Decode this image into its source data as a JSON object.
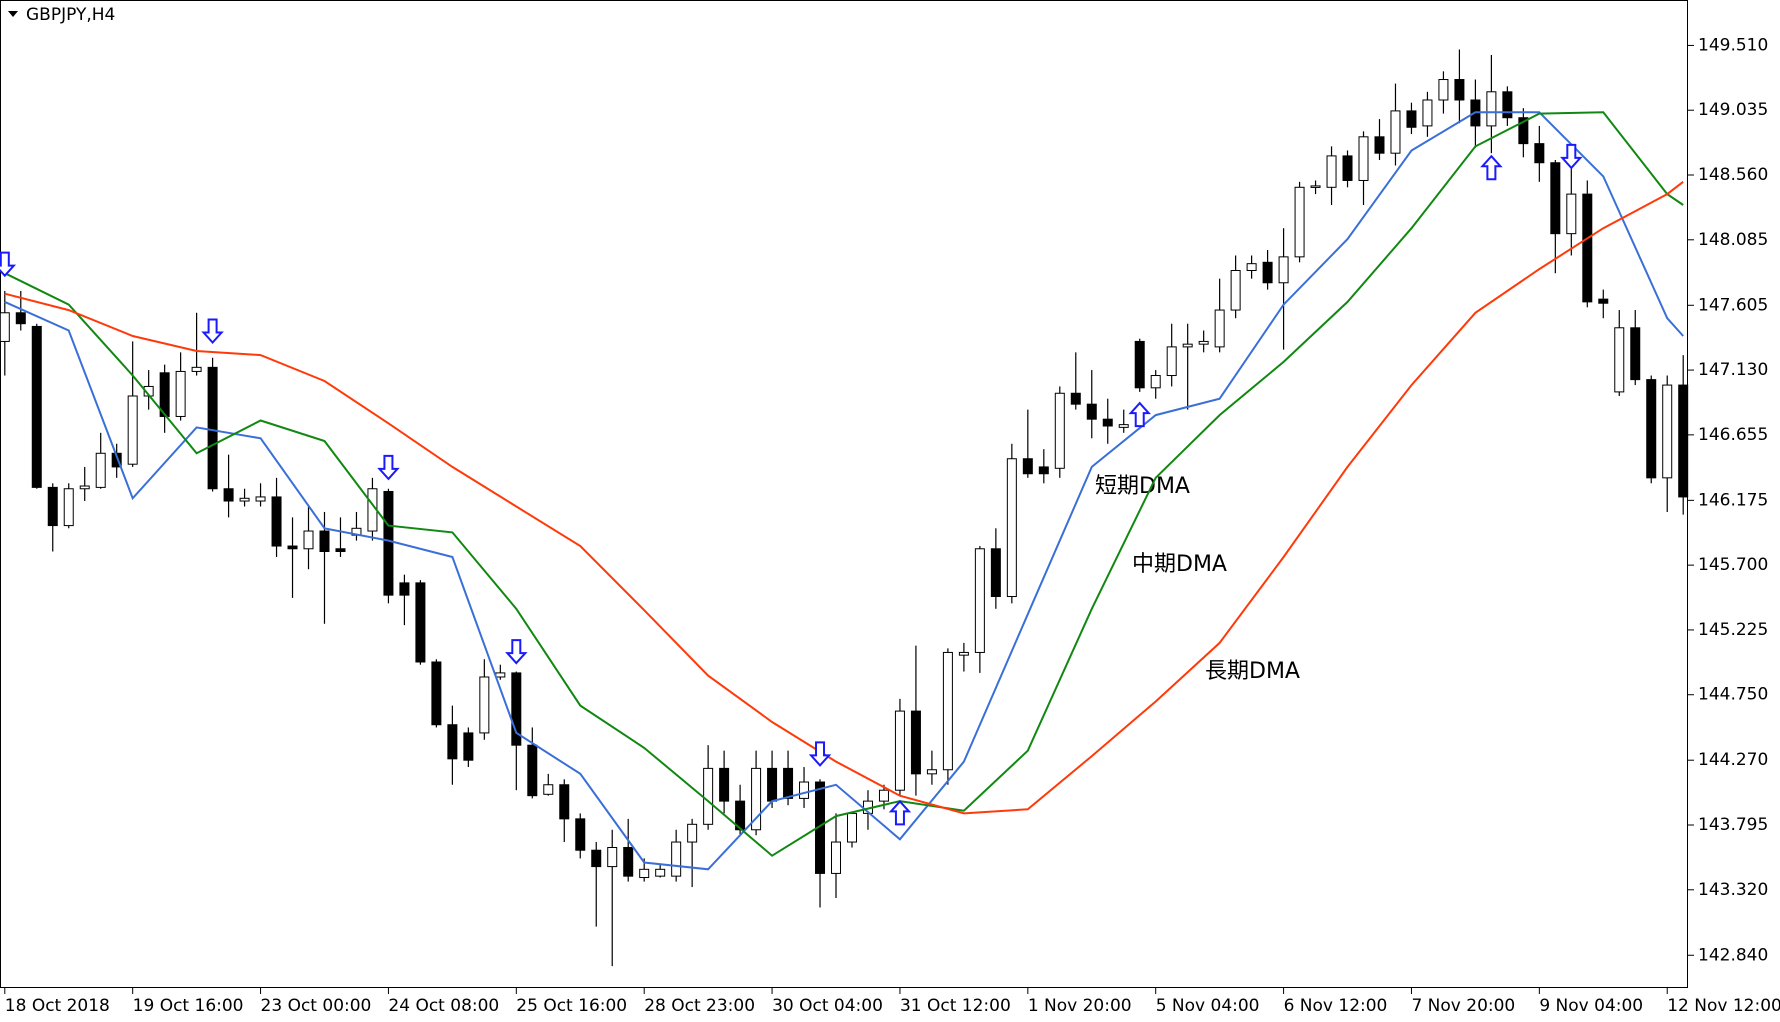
{
  "chart_data": {
    "type": "candlestick",
    "title": "GBPJPY,H4",
    "categories": [
      "18 Oct 2018",
      null,
      null,
      null,
      null,
      null,
      null,
      null,
      "19 Oct 16:00",
      null,
      null,
      null,
      null,
      null,
      null,
      null,
      "23 Oct 00:00",
      null,
      null,
      null,
      null,
      null,
      null,
      null,
      "24 Oct 08:00",
      null,
      null,
      null,
      null,
      null,
      null,
      null,
      "25 Oct 16:00",
      null,
      null,
      null,
      null,
      null,
      null,
      null,
      "28 Oct 23:00",
      null,
      null,
      null,
      null,
      null,
      null,
      null,
      "30 Oct 04:00",
      null,
      null,
      null,
      null,
      null,
      null,
      null,
      "31 Oct 12:00",
      null,
      null,
      null,
      null,
      null,
      null,
      null,
      "1 Nov 20:00",
      null,
      null,
      null,
      null,
      null,
      null,
      null,
      "5 Nov 04:00",
      null,
      null,
      null,
      null,
      null,
      null,
      null,
      "6 Nov 12:00",
      null,
      null,
      null,
      null,
      null,
      null,
      null,
      "7 Nov 20:00",
      null,
      null,
      null,
      null,
      null,
      null,
      null,
      "9 Nov 04:00",
      null,
      null,
      null,
      null,
      null,
      null,
      null,
      "12 Nov 12:00",
      null
    ],
    "open": [
      147.34,
      147.55,
      147.45,
      146.27,
      145.99,
      146.26,
      146.27,
      146.52,
      146.44,
      146.94,
      147.11,
      146.79,
      147.12,
      147.15,
      146.26,
      146.17,
      146.17,
      146.2,
      145.84,
      145.82,
      145.95,
      145.82,
      145.92,
      145.95,
      146.24,
      145.57,
      145.57,
      144.99,
      144.53,
      144.47,
      144.47,
      144.88,
      144.91,
      144.38,
      144.02,
      144.09,
      143.84,
      143.61,
      143.49,
      143.63,
      143.41,
      143.42,
      143.42,
      143.67,
      143.8,
      144.21,
      143.97,
      143.76,
      144.21,
      144.21,
      143.99,
      144.11,
      143.44,
      143.67,
      143.88,
      143.97,
      144.05,
      144.63,
      144.17,
      144.2,
      145.04,
      145.06,
      145.82,
      145.47,
      146.48,
      146.42,
      146.41,
      146.96,
      146.88,
      146.77,
      146.71,
      147.34,
      147.0,
      147.09,
      147.3,
      147.32,
      147.3,
      147.57,
      147.86,
      147.92,
      147.77,
      147.96,
      148.47,
      148.47,
      148.7,
      148.52,
      148.84,
      148.72,
      149.03,
      148.92,
      149.11,
      149.26,
      149.11,
      148.92,
      149.17,
      148.98,
      148.79,
      148.65,
      148.13,
      148.42,
      147.65,
      146.97,
      147.44,
      147.06,
      146.34,
      147.02
    ],
    "high": [
      147.71,
      147.71,
      147.47,
      146.3,
      146.3,
      146.42,
      146.67,
      146.59,
      147.34,
      147.13,
      147.17,
      147.26,
      147.55,
      147.22,
      146.51,
      146.26,
      146.3,
      146.34,
      146.05,
      146.13,
      146.09,
      146.05,
      146.09,
      146.34,
      146.26,
      145.63,
      145.59,
      145.01,
      144.67,
      144.51,
      145.01,
      144.97,
      144.92,
      144.51,
      144.17,
      144.13,
      143.88,
      143.67,
      143.76,
      143.84,
      143.55,
      143.51,
      143.76,
      143.84,
      144.38,
      144.34,
      144.09,
      144.34,
      144.34,
      144.34,
      144.22,
      144.13,
      143.88,
      143.81,
      144.05,
      144.09,
      144.72,
      145.11,
      144.34,
      145.09,
      145.13,
      145.84,
      145.97,
      146.59,
      146.84,
      146.55,
      147.01,
      147.26,
      147.13,
      146.92,
      146.84,
      147.36,
      147.13,
      147.47,
      147.47,
      147.42,
      147.8,
      147.97,
      147.97,
      148.01,
      148.17,
      148.51,
      148.52,
      148.77,
      148.74,
      148.88,
      148.97,
      149.23,
      149.09,
      149.17,
      149.32,
      149.48,
      149.26,
      149.44,
      149.21,
      149.05,
      148.92,
      148.67,
      148.76,
      148.52,
      147.72,
      147.57,
      147.57,
      147.09,
      147.09,
      147.24
    ],
    "low": [
      147.09,
      147.42,
      146.26,
      145.8,
      145.97,
      146.17,
      146.26,
      146.34,
      146.42,
      146.84,
      146.67,
      146.76,
      147.09,
      146.24,
      146.05,
      146.13,
      146.13,
      145.76,
      145.46,
      145.67,
      145.27,
      145.76,
      145.88,
      145.88,
      145.42,
      145.26,
      144.97,
      144.51,
      144.09,
      144.22,
      144.42,
      144.86,
      144.05,
      143.99,
      144.01,
      143.67,
      143.55,
      143.05,
      142.76,
      143.38,
      143.38,
      143.41,
      143.38,
      143.34,
      143.76,
      143.88,
      143.72,
      143.72,
      143.92,
      143.94,
      143.92,
      143.19,
      143.26,
      143.63,
      143.76,
      143.91,
      144.01,
      144.01,
      144.09,
      144.09,
      144.92,
      144.91,
      145.38,
      145.42,
      146.34,
      146.3,
      146.34,
      146.84,
      146.63,
      146.59,
      146.67,
      146.97,
      146.92,
      147.01,
      146.84,
      147.26,
      147.26,
      147.51,
      147.8,
      147.72,
      147.28,
      147.92,
      148.42,
      148.34,
      148.47,
      148.34,
      148.67,
      148.63,
      148.86,
      148.84,
      149.01,
      148.94,
      148.76,
      148.72,
      148.92,
      148.69,
      148.51,
      147.84,
      147.97,
      147.59,
      147.51,
      146.94,
      147.02,
      146.3,
      146.09,
      146.07
    ],
    "close": [
      147.55,
      147.47,
      146.27,
      145.99,
      146.26,
      146.28,
      146.52,
      146.42,
      146.94,
      147.01,
      146.79,
      147.12,
      147.15,
      146.26,
      146.17,
      146.19,
      146.2,
      145.84,
      145.82,
      145.95,
      145.8,
      145.8,
      145.97,
      146.26,
      145.48,
      145.48,
      144.99,
      144.53,
      144.28,
      144.27,
      144.88,
      144.91,
      144.38,
      144.01,
      144.09,
      143.84,
      143.61,
      143.49,
      143.63,
      143.42,
      143.47,
      143.47,
      143.67,
      143.8,
      144.21,
      143.97,
      143.76,
      144.21,
      143.97,
      143.99,
      144.11,
      143.44,
      143.67,
      143.88,
      143.97,
      144.05,
      144.63,
      144.17,
      144.2,
      145.06,
      145.06,
      145.82,
      145.47,
      146.48,
      146.37,
      146.37,
      146.96,
      146.88,
      146.77,
      146.72,
      146.73,
      147.0,
      147.09,
      147.3,
      147.32,
      147.34,
      147.57,
      147.86,
      147.91,
      147.77,
      147.96,
      148.47,
      148.48,
      148.7,
      148.52,
      148.84,
      148.72,
      149.03,
      148.91,
      149.11,
      149.26,
      149.11,
      148.92,
      149.17,
      148.98,
      148.79,
      148.65,
      148.13,
      148.42,
      147.63,
      147.62,
      147.44,
      147.06,
      146.34,
      147.02,
      146.2
    ],
    "series": [
      {
        "name": "短期DMA",
        "color": "#3a6fd8",
        "x": [
          0,
          4,
          8,
          12,
          16,
          20,
          24,
          28,
          32,
          36,
          40,
          44,
          48,
          52,
          56,
          60,
          64,
          68,
          72,
          76,
          80,
          84,
          88,
          92,
          96,
          100,
          104,
          105
        ],
        "values": [
          147.63,
          147.42,
          146.19,
          146.71,
          146.63,
          145.97,
          145.88,
          145.76,
          144.47,
          144.17,
          143.52,
          143.47,
          143.97,
          144.09,
          143.69,
          144.26,
          145.34,
          146.42,
          146.8,
          146.92,
          147.61,
          148.09,
          148.74,
          149.02,
          149.02,
          148.55,
          147.51,
          147.38
        ]
      },
      {
        "name": "中期DMA",
        "color": "#118811",
        "x": [
          0,
          4,
          8,
          12,
          16,
          20,
          24,
          28,
          32,
          36,
          40,
          44,
          48,
          52,
          56,
          60,
          64,
          68,
          72,
          76,
          80,
          84,
          88,
          92,
          96,
          100,
          104,
          105
        ],
        "values": [
          147.84,
          147.61,
          147.09,
          146.52,
          146.76,
          146.61,
          145.99,
          145.94,
          145.38,
          144.67,
          144.36,
          143.97,
          143.57,
          143.86,
          143.97,
          143.9,
          144.34,
          145.38,
          146.34,
          146.8,
          147.19,
          147.63,
          148.17,
          148.77,
          149.01,
          149.02,
          148.42,
          148.34
        ]
      },
      {
        "name": "長期DMA",
        "color": "#ff3a0a",
        "x": [
          0,
          4,
          8,
          12,
          16,
          20,
          24,
          28,
          32,
          36,
          40,
          44,
          48,
          52,
          56,
          60,
          64,
          68,
          72,
          76,
          80,
          84,
          88,
          92,
          96,
          100,
          104,
          105
        ],
        "values": [
          147.69,
          147.57,
          147.38,
          147.27,
          147.24,
          147.05,
          146.74,
          146.42,
          146.13,
          145.84,
          145.37,
          144.89,
          144.55,
          144.26,
          144.01,
          143.88,
          143.91,
          144.3,
          144.7,
          145.13,
          145.76,
          146.42,
          147.02,
          147.55,
          147.87,
          148.17,
          148.42,
          148.51
        ]
      }
    ],
    "sell_signals": {
      "color": "#1a1aff",
      "x": [
        0,
        13,
        24,
        32,
        51,
        98
      ],
      "values": [
        147.91,
        147.42,
        146.42,
        145.07,
        144.32,
        148.7
      ]
    },
    "buy_signals": {
      "color": "#1a1aff",
      "x": [
        56,
        71,
        93
      ],
      "values": [
        143.88,
        146.8,
        148.61
      ]
    },
    "xlim": [
      -0.3,
      105.3
    ],
    "ylim": [
      142.6,
      149.843
    ],
    "yticks": [
      {
        "value": 142.84,
        "label": "142.840"
      },
      {
        "value": 143.32,
        "label": "143.320"
      },
      {
        "value": 143.795,
        "label": "143.795"
      },
      {
        "value": 144.27,
        "label": "144.270"
      },
      {
        "value": 144.75,
        "label": "144.750"
      },
      {
        "value": 145.225,
        "label": "145.225"
      },
      {
        "value": 145.7,
        "label": "145.700"
      },
      {
        "value": 146.175,
        "label": "146.175"
      },
      {
        "value": 146.655,
        "label": "146.655"
      },
      {
        "value": 147.13,
        "label": "147.130"
      },
      {
        "value": 147.605,
        "label": "147.605"
      },
      {
        "value": 148.085,
        "label": "148.085"
      },
      {
        "value": 148.56,
        "label": "148.560"
      },
      {
        "value": 149.035,
        "label": "149.035"
      },
      {
        "value": 149.51,
        "label": "149.510"
      }
    ],
    "grid": false
  }
}
